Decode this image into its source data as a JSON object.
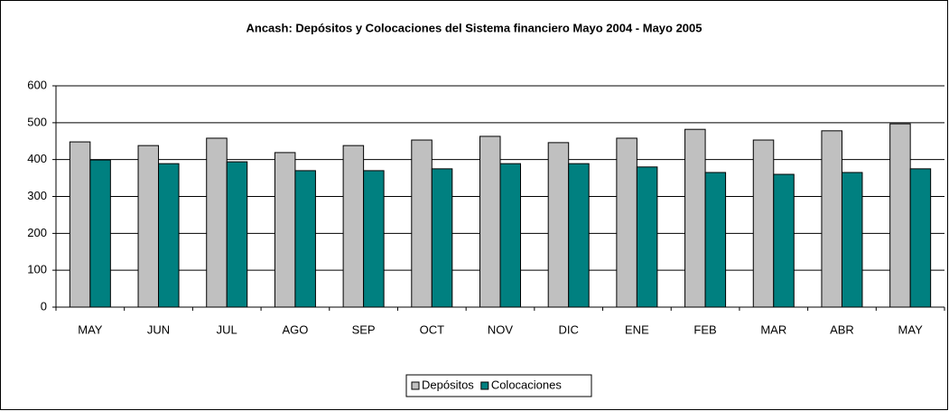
{
  "chart_data": {
    "type": "bar",
    "title": "Ancash: Depósitos y Colocaciones del Sistema financiero Mayo 2004 - Mayo 2005",
    "categories": [
      "MAY",
      "JUN",
      "JUL",
      "AGO",
      "SEP",
      "OCT",
      "NOV",
      "DIC",
      "ENE",
      "FEB",
      "MAR",
      "ABR",
      "MAY"
    ],
    "series": [
      {
        "name": "Depósitos",
        "color": "#c0c0c0",
        "values": [
          448,
          438,
          458,
          419,
          438,
          453,
          463,
          446,
          458,
          482,
          453,
          478,
          497
        ]
      },
      {
        "name": "Colocaciones",
        "color": "#008080",
        "values": [
          399,
          389,
          394,
          370,
          370,
          375,
          389,
          389,
          380,
          365,
          360,
          365,
          375
        ]
      }
    ],
    "ylim": [
      0,
      600
    ],
    "yticks": [
      0,
      100,
      200,
      300,
      400,
      500,
      600
    ],
    "grid": true,
    "legend": "bottom"
  }
}
